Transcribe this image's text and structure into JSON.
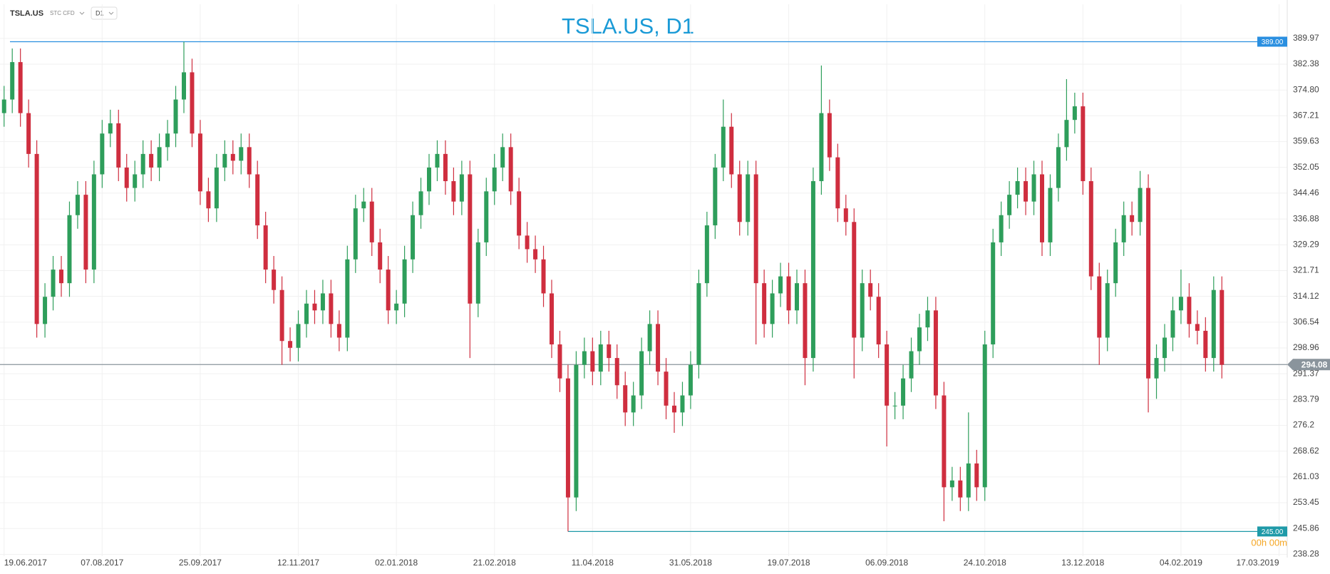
{
  "chart_data": {
    "type": "candlestick",
    "title": "TSLA.US, D1",
    "symbol": "TSLA.US",
    "instrument": "STC CFD",
    "timeframe": "D1",
    "timer": "00h 00m",
    "up_color": "#2e9e5b",
    "down_color": "#cf2e3f",
    "open": [
      368,
      372,
      383,
      368,
      356,
      306,
      314,
      322,
      318,
      338,
      344,
      322,
      350,
      362,
      365,
      352,
      346,
      350,
      356,
      352,
      358,
      362,
      372,
      380,
      362,
      345,
      340,
      352,
      356,
      354,
      358,
      350,
      335,
      322,
      316,
      301,
      299,
      306,
      312,
      310,
      315,
      306,
      302,
      325,
      340,
      342,
      330,
      322,
      310,
      312,
      325,
      338,
      345,
      352,
      356,
      348,
      342,
      350,
      312,
      330,
      345,
      352,
      358,
      345,
      332,
      328,
      325,
      315,
      300,
      290,
      255,
      294,
      298,
      292,
      300,
      296,
      288,
      280,
      285,
      298,
      306,
      292,
      282,
      280,
      285,
      294,
      318,
      335,
      352,
      364,
      350,
      336,
      350,
      318,
      306,
      315,
      320,
      310,
      318,
      296,
      348,
      368,
      355,
      340,
      336,
      302,
      318,
      314,
      300,
      282,
      282,
      290,
      298,
      305,
      310,
      285,
      258,
      260,
      255,
      265,
      258,
      300,
      330,
      338,
      344,
      348,
      342,
      350,
      330,
      346,
      358,
      366,
      370,
      348,
      320,
      302,
      318,
      330,
      338,
      336,
      346,
      290,
      296,
      302,
      310,
      314,
      306,
      304,
      296,
      316
    ],
    "high": [
      376,
      387,
      387,
      372,
      360,
      318,
      326,
      326,
      342,
      348,
      348,
      354,
      366,
      369,
      369,
      356,
      354,
      360,
      360,
      362,
      366,
      376,
      389,
      384,
      366,
      349,
      356,
      360,
      360,
      362,
      362,
      354,
      339,
      326,
      320,
      305,
      310,
      316,
      316,
      319,
      319,
      310,
      329,
      344,
      346,
      346,
      334,
      326,
      316,
      329,
      342,
      349,
      356,
      360,
      360,
      352,
      354,
      354,
      334,
      349,
      356,
      362,
      362,
      349,
      336,
      332,
      329,
      319,
      304,
      294,
      298,
      302,
      302,
      304,
      304,
      300,
      292,
      289,
      302,
      310,
      310,
      296,
      286,
      289,
      298,
      322,
      339,
      356,
      372,
      368,
      354,
      354,
      354,
      322,
      319,
      324,
      324,
      322,
      322,
      352,
      382,
      372,
      359,
      344,
      340,
      322,
      322,
      318,
      304,
      286,
      294,
      302,
      309,
      314,
      314,
      289,
      264,
      264,
      280,
      269,
      304,
      334,
      342,
      348,
      352,
      352,
      354,
      354,
      350,
      362,
      378,
      374,
      374,
      352,
      324,
      322,
      334,
      342,
      342,
      351,
      350,
      300,
      306,
      314,
      322,
      318,
      310,
      308,
      320,
      320
    ],
    "low": [
      364,
      368,
      364,
      352,
      302,
      302,
      310,
      314,
      314,
      334,
      318,
      318,
      346,
      358,
      348,
      342,
      342,
      346,
      348,
      348,
      354,
      358,
      368,
      358,
      341,
      336,
      336,
      348,
      350,
      350,
      346,
      331,
      318,
      312,
      294,
      295,
      295,
      302,
      306,
      306,
      302,
      298,
      298,
      321,
      336,
      326,
      318,
      306,
      306,
      308,
      321,
      334,
      341,
      348,
      344,
      338,
      338,
      296,
      308,
      326,
      341,
      348,
      341,
      328,
      324,
      321,
      311,
      296,
      286,
      245,
      251,
      290,
      288,
      288,
      292,
      284,
      276,
      276,
      281,
      294,
      288,
      278,
      274,
      276,
      281,
      290,
      314,
      331,
      348,
      346,
      332,
      332,
      300,
      302,
      302,
      311,
      306,
      306,
      288,
      292,
      344,
      351,
      336,
      332,
      290,
      298,
      310,
      296,
      270,
      278,
      278,
      286,
      294,
      301,
      281,
      248,
      254,
      251,
      251,
      254,
      254,
      296,
      326,
      334,
      340,
      338,
      338,
      326,
      326,
      342,
      354,
      362,
      344,
      316,
      294,
      298,
      314,
      326,
      332,
      332,
      280,
      284,
      292,
      298,
      306,
      302,
      300,
      292,
      292,
      290
    ],
    "close": [
      372,
      383,
      368,
      356,
      306,
      314,
      322,
      318,
      338,
      344,
      322,
      350,
      362,
      365,
      352,
      346,
      350,
      356,
      352,
      358,
      362,
      372,
      380,
      362,
      345,
      340,
      352,
      356,
      354,
      358,
      350,
      335,
      322,
      316,
      301,
      299,
      306,
      312,
      310,
      315,
      306,
      302,
      325,
      340,
      342,
      330,
      322,
      310,
      312,
      325,
      338,
      345,
      352,
      356,
      348,
      342,
      350,
      312,
      330,
      345,
      352,
      358,
      345,
      332,
      328,
      325,
      315,
      300,
      290,
      255,
      294,
      298,
      292,
      300,
      296,
      288,
      280,
      285,
      298,
      306,
      292,
      282,
      280,
      285,
      294,
      318,
      335,
      352,
      364,
      350,
      336,
      350,
      318,
      306,
      315,
      320,
      310,
      318,
      296,
      348,
      368,
      355,
      340,
      336,
      302,
      318,
      314,
      300,
      282,
      282,
      290,
      298,
      305,
      310,
      285,
      258,
      260,
      255,
      265,
      258,
      300,
      330,
      338,
      344,
      348,
      342,
      350,
      330,
      346,
      358,
      366,
      370,
      348,
      320,
      302,
      318,
      330,
      338,
      336,
      346,
      290,
      296,
      302,
      310,
      314,
      306,
      304,
      296,
      316,
      294
    ],
    "xlim": [
      -0.5,
      157
    ],
    "xticks": [
      {
        "value": 0,
        "label": "19.06.2017"
      },
      {
        "value": 12,
        "label": "07.08.2017"
      },
      {
        "value": 24,
        "label": "25.09.2017"
      },
      {
        "value": 36,
        "label": "12.11.2017"
      },
      {
        "value": 48,
        "label": "02.01.2018"
      },
      {
        "value": 60,
        "label": "21.02.2018"
      },
      {
        "value": 72,
        "label": "11.04.2018"
      },
      {
        "value": 84,
        "label": "31.05.2018"
      },
      {
        "value": 96,
        "label": "19.07.2018"
      },
      {
        "value": 108,
        "label": "06.09.2018"
      },
      {
        "value": 120,
        "label": "24.10.2018"
      },
      {
        "value": 132,
        "label": "13.12.2018"
      },
      {
        "value": 144,
        "label": "04.02.2019"
      },
      {
        "value": 156,
        "label": "17.03.2019"
      }
    ],
    "ylim": [
      237.74,
      400
    ],
    "yticks": [
      389.97,
      382.38,
      {
        "value": 374.8,
        "label": "374.80"
      },
      367.21,
      359.63,
      352.05,
      344.46,
      336.88,
      329.29,
      321.71,
      314.12,
      306.54,
      298.96,
      291.37,
      283.79,
      276.2,
      268.62,
      261.03,
      253.45,
      245.86,
      238.28
    ],
    "grid": true,
    "levels": [
      {
        "value": 389,
        "label": "389.00",
        "color": "#2a8fe0"
      },
      {
        "value": 245,
        "label": "245.00",
        "color": "#1f9aa8"
      }
    ],
    "current_price": {
      "value": 294.08,
      "label": "294.08",
      "color": "#8a949c"
    }
  }
}
